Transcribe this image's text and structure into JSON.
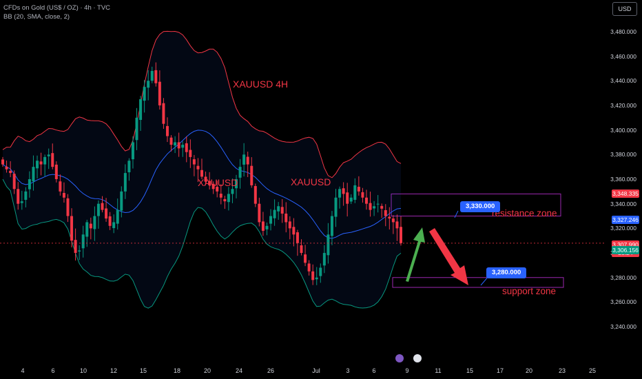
{
  "header": {
    "symbol_line": "CFDs on Gold (US$ / OZ) · 4h · TVC",
    "indicator_line": "BB (20, SMA, close, 2)"
  },
  "currency_button": "USD",
  "annotations": {
    "title": "XAUUSD 4H",
    "label_1": "XAUUSD",
    "label_2": "XAUUSD",
    "resistance_label": "resistance zone",
    "support_label": "support zone",
    "resistance_callout": "3,330.000",
    "support_callout": "3,280.000"
  },
  "price_tags": [
    {
      "label": "3,348.335",
      "value": 3348.3,
      "color": "#f23645",
      "text": "#ffffff"
    },
    {
      "label": "3,327.246",
      "value": 3327.2,
      "color": "#2962ff",
      "text": "#ffffff"
    },
    {
      "label": "3,307.990\n28:24",
      "value": 3306.9,
      "color": "#f23645",
      "text": "#ffffff"
    },
    {
      "label": "3,306.156",
      "value": 3302.4,
      "color": "#089981",
      "text": "#ffffff"
    }
  ],
  "colors": {
    "up": "#089981",
    "down": "#f23645",
    "bb_basis": "#2962ff",
    "bb_upper": "#f23645",
    "bb_lower": "#089981",
    "arrow_up": "#4caf50",
    "arrow_down": "#f23645",
    "zone": "#9c27b0"
  },
  "chart_data": {
    "type": "candlestick",
    "ylim": [
      3230,
      3490
    ],
    "y_ticks": [
      3480,
      3460,
      3440,
      3420,
      3400,
      3380,
      3360,
      3340,
      3320,
      3300,
      3280,
      3260,
      3240
    ],
    "y_tick_labels": [
      "3,480.000",
      "3,460.000",
      "3,440.000",
      "3,420.000",
      "3,400.000",
      "3,380.000",
      "3,360.000",
      "3,340.000",
      "3,320.000",
      "3,300.000",
      "3,280.000",
      "3,260.000",
      "3,240.000"
    ],
    "x_ticks": [
      "4",
      "6",
      "10",
      "12",
      "15",
      "18",
      "20",
      "24",
      "26",
      "Jul",
      "3",
      "6",
      "9",
      "11",
      "15",
      "17",
      "20",
      "23",
      "25"
    ],
    "last_price": 3307.99,
    "resistance_zone": [
      3330,
      3348
    ],
    "support_zone": [
      3272,
      3280
    ],
    "closes": [
      3372,
      3368,
      3365,
      3352,
      3340,
      3342,
      3350,
      3360,
      3370,
      3375,
      3372,
      3378,
      3380,
      3370,
      3360,
      3350,
      3345,
      3330,
      3310,
      3300,
      3302,
      3315,
      3325,
      3320,
      3330,
      3340,
      3335,
      3328,
      3322,
      3325,
      3335,
      3350,
      3365,
      3375,
      3390,
      3410,
      3425,
      3435,
      3440,
      3448,
      3438,
      3420,
      3405,
      3395,
      3388,
      3390,
      3385,
      3388,
      3382,
      3378,
      3372,
      3368,
      3362,
      3358,
      3355,
      3352,
      3350,
      3345,
      3342,
      3348,
      3352,
      3360,
      3370,
      3380,
      3372,
      3355,
      3340,
      3325,
      3318,
      3322,
      3330,
      3335,
      3338,
      3332,
      3325,
      3320,
      3315,
      3308,
      3300,
      3292,
      3285,
      3278,
      3280,
      3288,
      3300,
      3315,
      3330,
      3345,
      3352,
      3348,
      3340,
      3345,
      3355,
      3350,
      3345,
      3340,
      3335,
      3338,
      3340,
      3336,
      3330,
      3328,
      3325,
      3320,
      3308
    ]
  }
}
